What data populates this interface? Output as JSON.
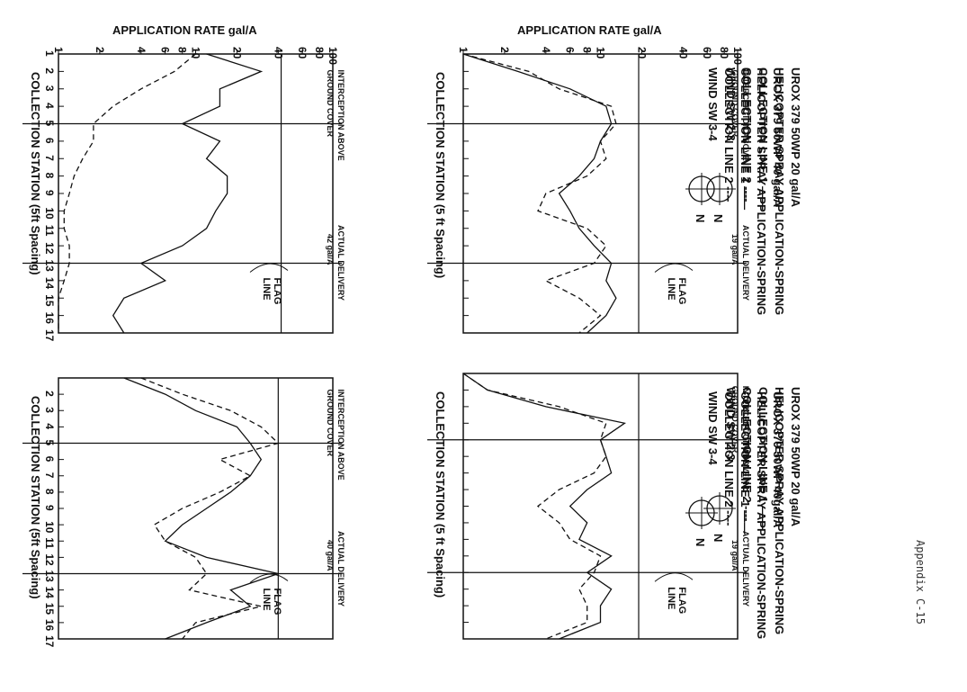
{
  "page_label": "Appendix C-15",
  "chart_data": [
    {
      "type": "line",
      "info_lines": [
        "UROX 379 50WP 20 gal/A",
        "HELICOPTER SPRAY APPLICATION-SPRING",
        "COLLECTION LINE 1 ——",
        "COLLECTION LINE 2 ----",
        "WIND SW 2-3"
      ],
      "ylabel": "APPLICATION RATE gal/A",
      "yticks": [
        "1",
        "2",
        "4",
        "6",
        "8",
        "10",
        "20",
        "40",
        "60",
        "80",
        "100"
      ],
      "ylim": [
        1,
        100
      ],
      "yscale": "log",
      "xlabel": "COLLECTION STATION (5 ft Spacing)",
      "xticks": [],
      "x": [
        1,
        2,
        3,
        4,
        5,
        6,
        7,
        8,
        9,
        10,
        11,
        12,
        13,
        14,
        15,
        16,
        17
      ],
      "series": [
        {
          "name": "COLLECTION LINE 1",
          "style": "solid",
          "values": [
            1.0,
            2.5,
            6,
            11,
            12,
            10,
            9,
            7,
            5,
            6,
            7,
            9,
            12,
            11,
            13,
            11,
            8
          ]
        },
        {
          "name": "COLLECTION LINE 2",
          "style": "dashed",
          "values": [
            1.0,
            3,
            5,
            12,
            13,
            10,
            11,
            8,
            4,
            3.5,
            8,
            11,
            9,
            4,
            7,
            10,
            7
          ]
        }
      ],
      "reference_lines": [
        {
          "axis": "y",
          "value": 19,
          "label": "ACTUAL DELIVERY 19 gal/A"
        },
        {
          "axis": "x",
          "value": 5,
          "label": "INTERCEPTION ABOVE GROUND COVER"
        },
        {
          "axis": "x",
          "value": 13,
          "label": "FLAG LINE"
        }
      ],
      "compass": "N"
    },
    {
      "type": "line",
      "info_lines": [
        "UROX 379 50WP 40 gal/A",
        "HELICOPTER SPRAY APPLICATION-SPRING",
        "COLLECTION LINE 1 ——",
        "COLLECTION LINE 2 ----",
        "WIND SW 3-4"
      ],
      "ylabel": "APPLICATION RATE gal/A",
      "yticks": [
        "1",
        "2",
        "4",
        "6",
        "8",
        "10",
        "20",
        "40",
        "60",
        "80",
        "100"
      ],
      "ylim": [
        1,
        100
      ],
      "yscale": "log",
      "xlabel": "COLLECTION STATION (5ft Spacing)",
      "xticks": [
        "1",
        "2",
        "3",
        "4",
        "5",
        "6",
        "7",
        "8",
        "9",
        "10",
        "11",
        "12",
        "13",
        "14",
        "15",
        "16",
        "17"
      ],
      "x": [
        1,
        2,
        3,
        4,
        5,
        6,
        7,
        8,
        9,
        10,
        11,
        12,
        13,
        14,
        15,
        16,
        17
      ],
      "series": [
        {
          "name": "COLLECTION LINE 1",
          "style": "solid",
          "values": [
            12,
            30,
            15,
            15,
            8,
            15,
            12,
            17,
            17,
            14,
            12,
            8,
            4,
            6,
            3,
            2.5,
            3
          ]
        },
        {
          "name": "COLLECTION LINE 2",
          "style": "dashed",
          "values": [
            10,
            7,
            4,
            2.5,
            1.8,
            1.8,
            1.5,
            1.3,
            1.2,
            1.1,
            1.1,
            1.2,
            1.2,
            1.1,
            1.0,
            1.0,
            1.0
          ]
        }
      ],
      "reference_lines": [
        {
          "axis": "y",
          "value": 42,
          "label": "ACTUAL DELIVERY 42 gal/A"
        },
        {
          "axis": "x",
          "value": 5,
          "label": "INTERCEPTION ABOVE GROUND COVER"
        },
        {
          "axis": "x",
          "value": 13,
          "label": "FLAG LINE"
        }
      ],
      "compass": "N"
    },
    {
      "type": "line",
      "info_lines": [
        "UROX 379 50WP 20 gal/A",
        "HELICOPTER SPRAY APPLICATION-SPRING",
        "COLLECTION LINE 1 ——",
        "COLLECTION LINE 2 ----",
        "WIND SW 2-3"
      ],
      "ylabel": "",
      "yticks": [],
      "ylim": [
        1,
        100
      ],
      "yscale": "log",
      "xlabel": "COLLECTION STATION (5 ft Spacing)",
      "xticks": [],
      "x": [
        1,
        2,
        3,
        4,
        5,
        6,
        7,
        8,
        9,
        10,
        11,
        12,
        13,
        14,
        15,
        16,
        17
      ],
      "series": [
        {
          "name": "COLLECTION LINE 1",
          "style": "solid",
          "values": [
            1.0,
            1.5,
            4,
            15,
            10,
            11,
            12,
            8,
            6,
            8,
            7,
            12,
            8,
            12,
            10,
            10,
            5
          ]
        },
        {
          "name": "COLLECTION LINE 2",
          "style": "dashed",
          "values": [
            1.0,
            1.5,
            5,
            11,
            10,
            11,
            9,
            5,
            3.5,
            5,
            6,
            10,
            9,
            7,
            8,
            8,
            4
          ]
        }
      ],
      "reference_lines": [
        {
          "axis": "y",
          "value": 19,
          "label": "ACTUAL DELIVERY 19 gal/A"
        },
        {
          "axis": "x",
          "value": 5,
          "label": "INTERCEPTION ABOVE GROUND COVER"
        },
        {
          "axis": "x",
          "value": 13,
          "label": "FLAG LINE"
        }
      ],
      "compass": "N"
    },
    {
      "type": "line",
      "info_lines": [
        "UROX 379 50WP 40gal/A",
        "HELICOPTER SPRAY APPLICATION-SPRING",
        "COLLECTION LINE 1 ——",
        "COLLECTION LINE 2 ----",
        "WIND SW 3-4"
      ],
      "ylabel": "",
      "yticks": [],
      "ylim": [
        1,
        100
      ],
      "yscale": "log",
      "xlabel": "COLLECTION STATION (5ft Spacing)",
      "xticks": [
        "",
        "2",
        "3",
        "4",
        "5",
        "6",
        "7",
        "8",
        "9",
        "10",
        "11",
        "12",
        "13",
        "14",
        "15",
        "16",
        "17"
      ],
      "x": [
        1,
        2,
        3,
        4,
        5,
        6,
        7,
        8,
        9,
        10,
        11,
        12,
        13,
        14,
        15,
        16,
        17
      ],
      "series": [
        {
          "name": "COLLECTION LINE 1",
          "style": "solid",
          "values": [
            3,
            6,
            10,
            20,
            25,
            30,
            25,
            18,
            12,
            8,
            6,
            12,
            40,
            18,
            25,
            12,
            6
          ]
        },
        {
          "name": "COLLECTION LINE 2",
          "style": "dashed",
          "values": [
            4,
            8,
            18,
            30,
            40,
            15,
            25,
            15,
            8,
            5,
            6,
            10,
            12,
            9,
            30,
            10,
            8
          ]
        }
      ],
      "reference_lines": [
        {
          "axis": "y",
          "value": 40,
          "label": "ACTUAL DELIVERY 40 gal/A"
        },
        {
          "axis": "x",
          "value": 5,
          "label": "INTERCEPTION ABOVE GROUND COVER"
        },
        {
          "axis": "x",
          "value": 13,
          "label": "FLAG LINE"
        }
      ],
      "compass": "N"
    }
  ]
}
